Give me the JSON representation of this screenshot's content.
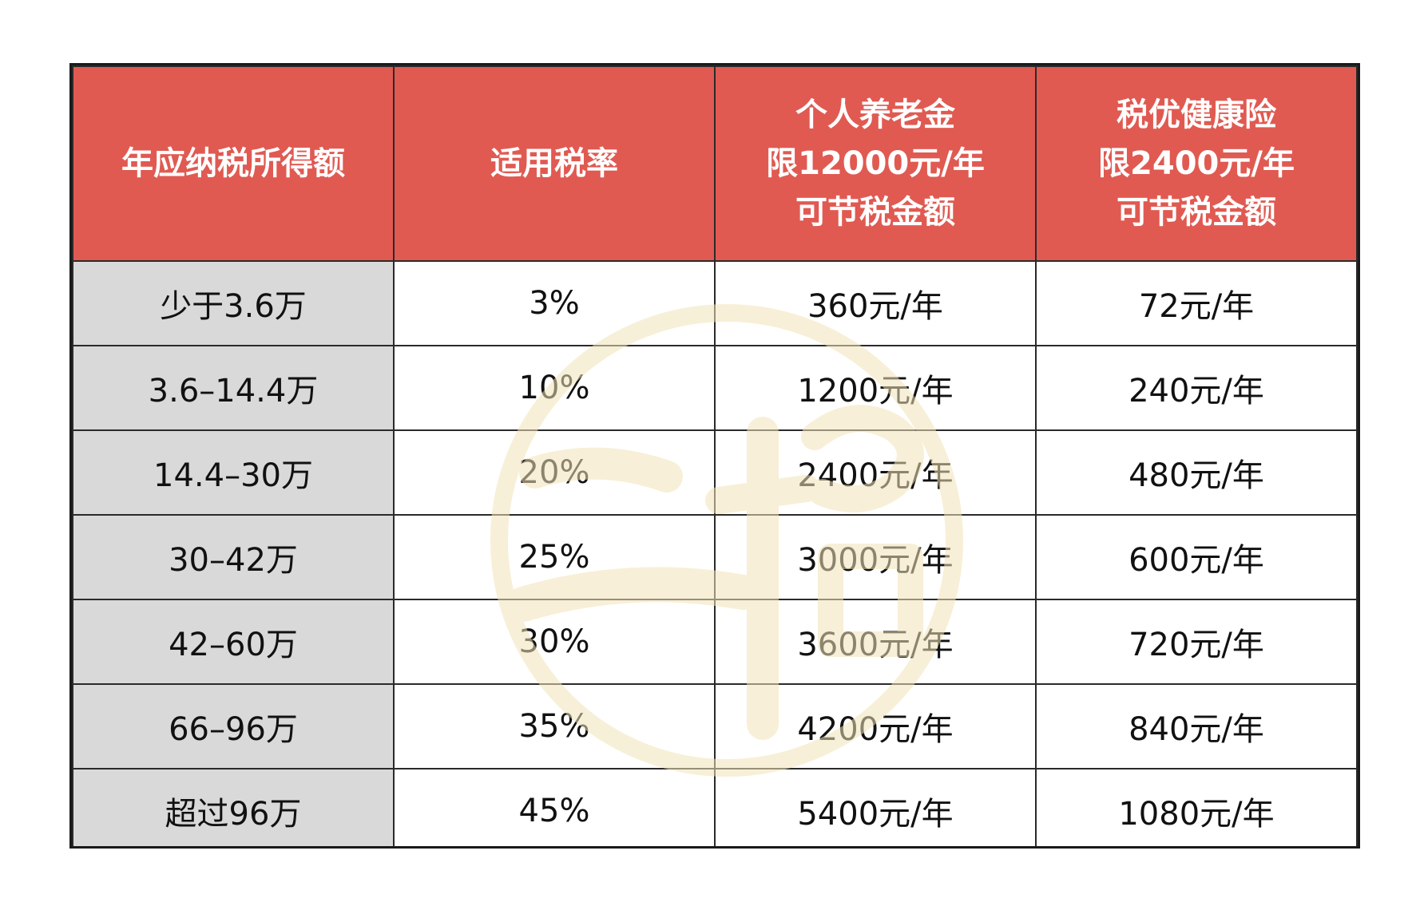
{
  "table": {
    "headers": [
      {
        "lines": [
          "年应纳税所得额"
        ]
      },
      {
        "lines": [
          "适用税率"
        ]
      },
      {
        "lines": [
          "个人养老金",
          "限12000元/年",
          "可节税金额"
        ]
      },
      {
        "lines": [
          "税优健康险",
          "限2400元/年",
          "可节税金额"
        ]
      }
    ],
    "rows": [
      [
        "少于3.6万",
        "3%",
        "360元/年",
        "72元/年"
      ],
      [
        "3.6–14.4万",
        "10%",
        "1200元/年",
        "240元/年"
      ],
      [
        "14.4–30万",
        "20%",
        "2400元/年",
        "480元/年"
      ],
      [
        "30–42万",
        "25%",
        "3000元/年",
        "600元/年"
      ],
      [
        "42–60万",
        "30%",
        "3600元/年",
        "720元/年"
      ],
      [
        "66–96万",
        "35%",
        "4200元/年",
        "840元/年"
      ],
      [
        "超过96万",
        "45%",
        "5400元/年",
        "1080元/年"
      ]
    ]
  },
  "watermark": {
    "icon": "seal-watermark-icon",
    "color": "#f1e3b8"
  },
  "colors": {
    "header_bg": "#e05a52",
    "header_text": "#ffffff",
    "first_col_bg": "#d9d9d9",
    "border": "#2a2a2a"
  }
}
